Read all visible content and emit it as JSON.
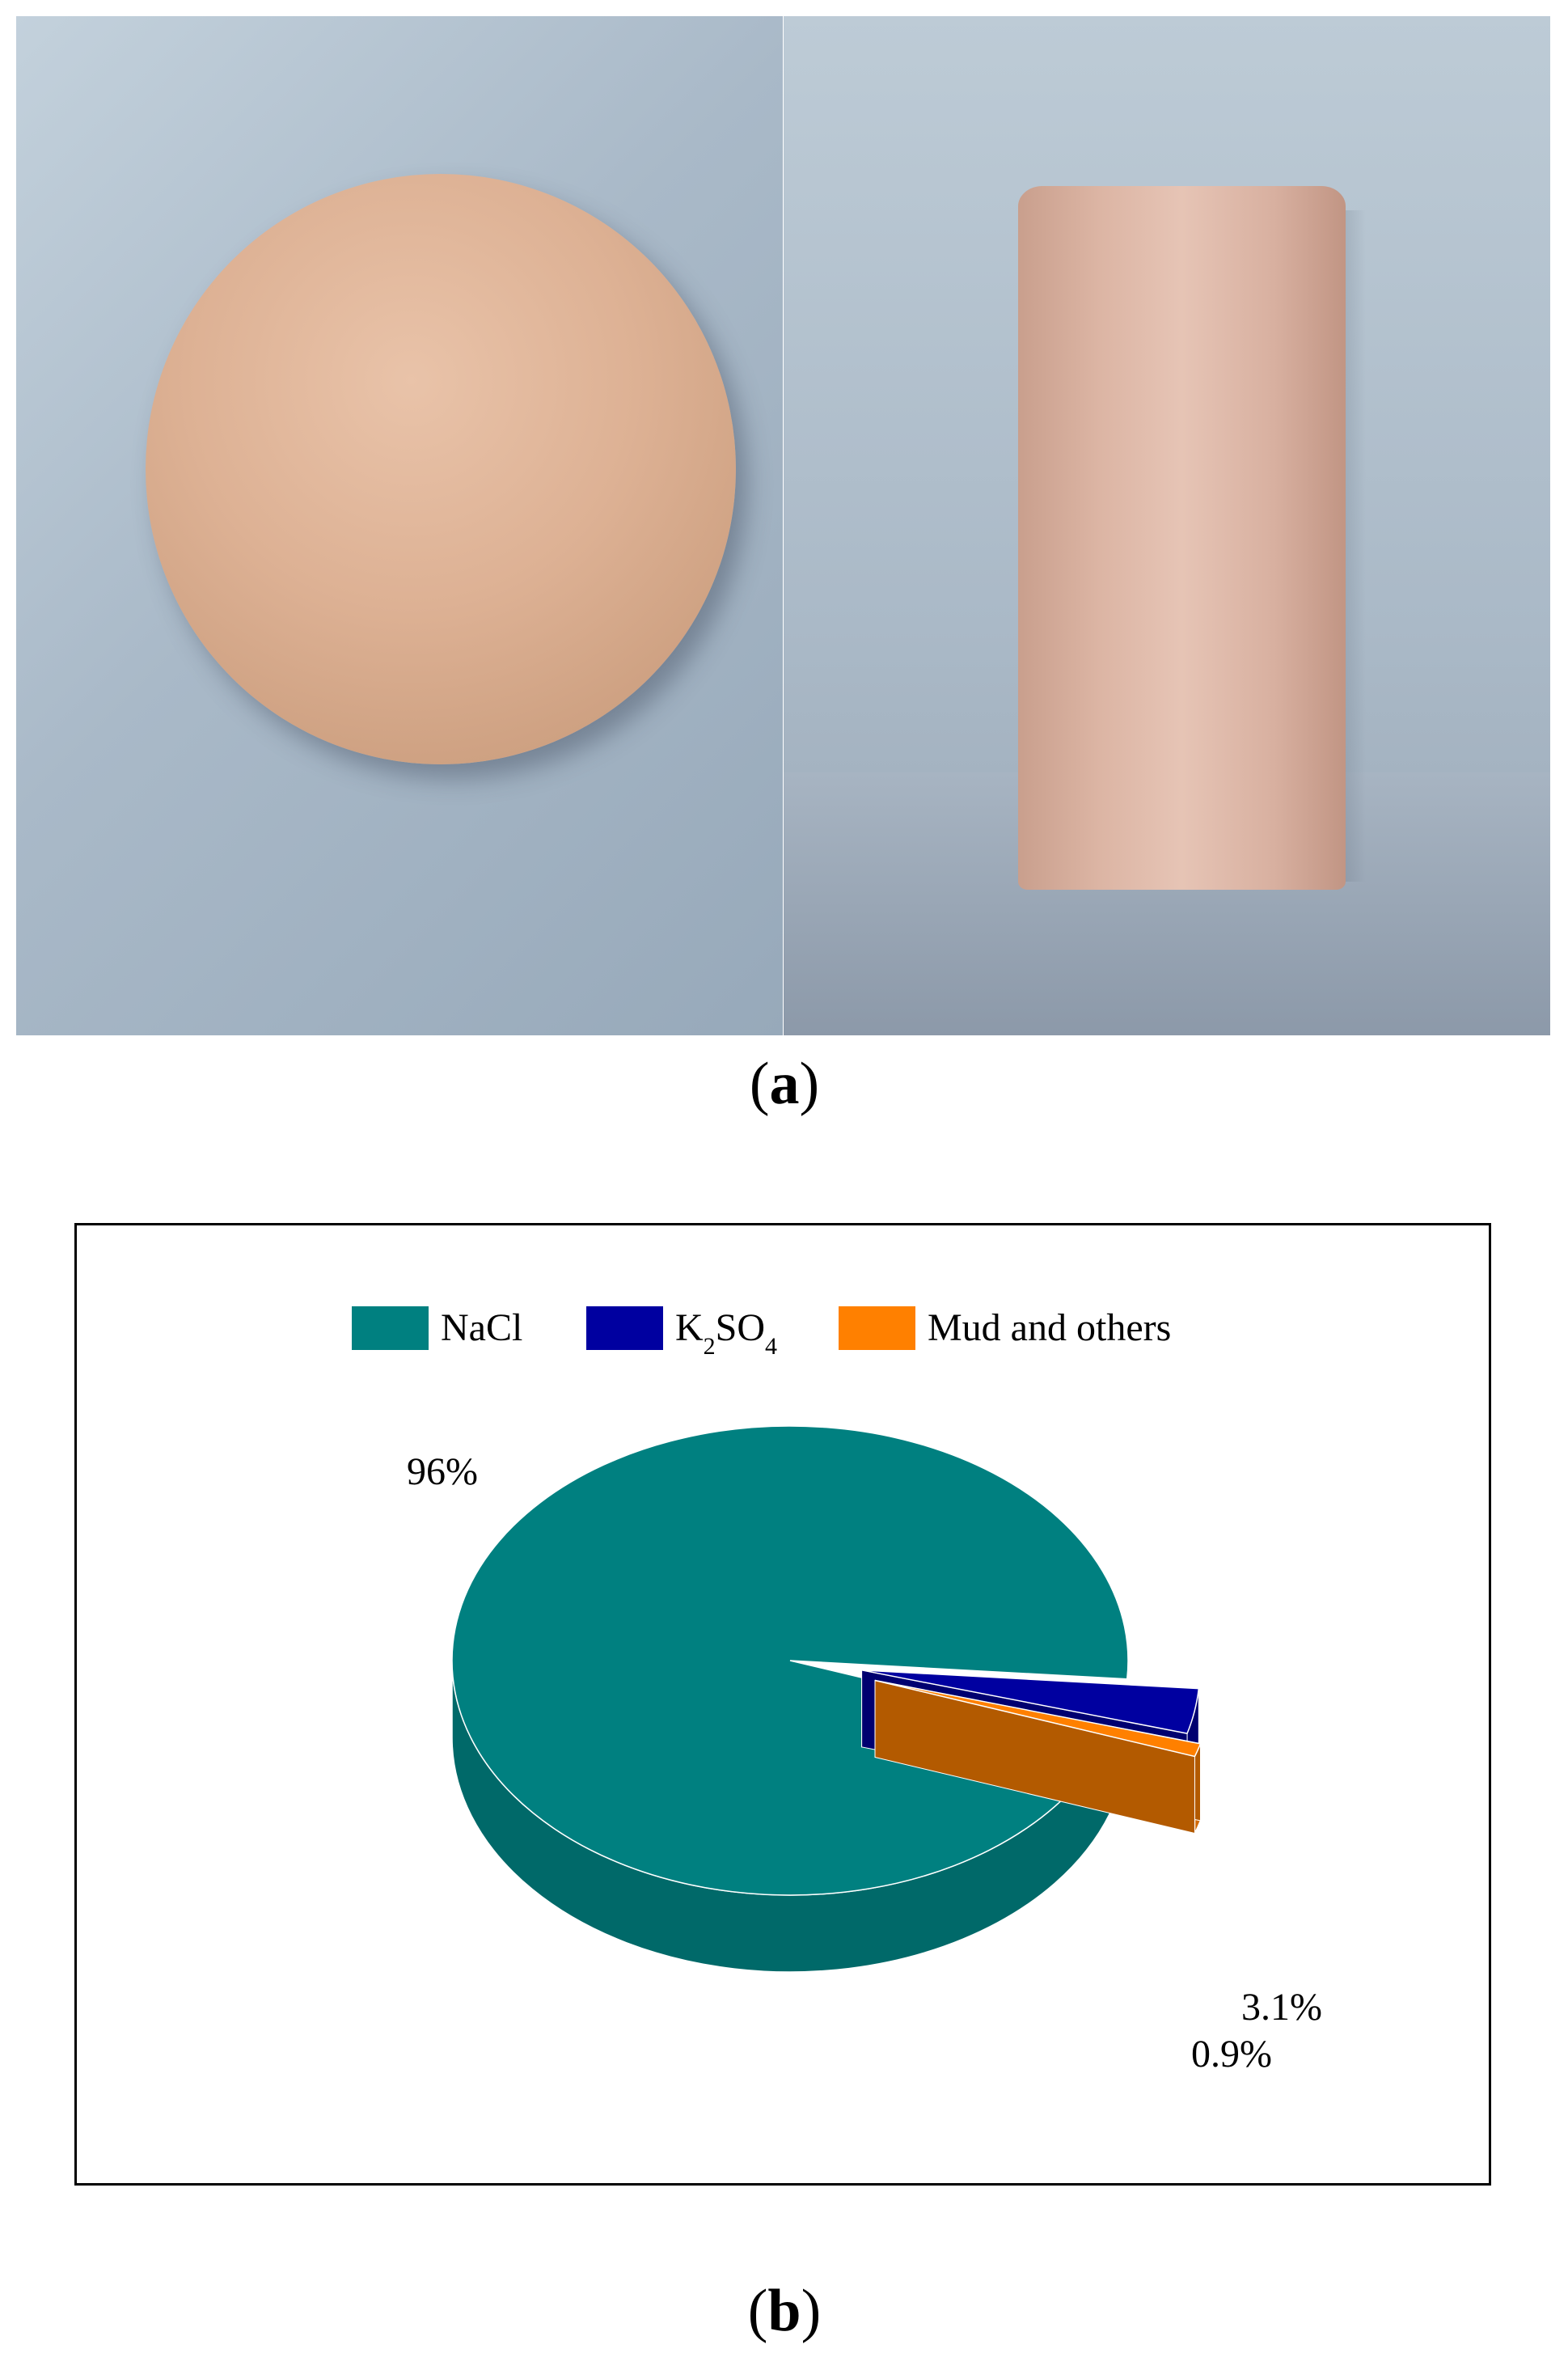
{
  "panel_labels": {
    "a": "a",
    "b": "b"
  },
  "photos": {
    "left": "salt-disk-top-view",
    "right": "salt-cylinder-side-view"
  },
  "colors": {
    "nacl": "#008080",
    "k2so4": "#0000A0",
    "mud": "#FF8000"
  },
  "chart_data": {
    "type": "pie",
    "style": "3d-exploded",
    "title": "",
    "legend_placement": "top-center",
    "labels_rich": [
      {
        "base": "NaCl"
      },
      {
        "parts": [
          "K",
          "2",
          "SO",
          "4"
        ]
      },
      {
        "base": "Mud and others"
      }
    ],
    "slices": [
      {
        "name": "NaCl",
        "value": 96,
        "label": "96%",
        "color": "#008080"
      },
      {
        "name": "K2SO4",
        "value": 3.1,
        "label": "3.1%",
        "color": "#0000A0"
      },
      {
        "name": "Mud and others",
        "value": 0.9,
        "label": "0.9%",
        "color": "#FF8000"
      }
    ]
  }
}
